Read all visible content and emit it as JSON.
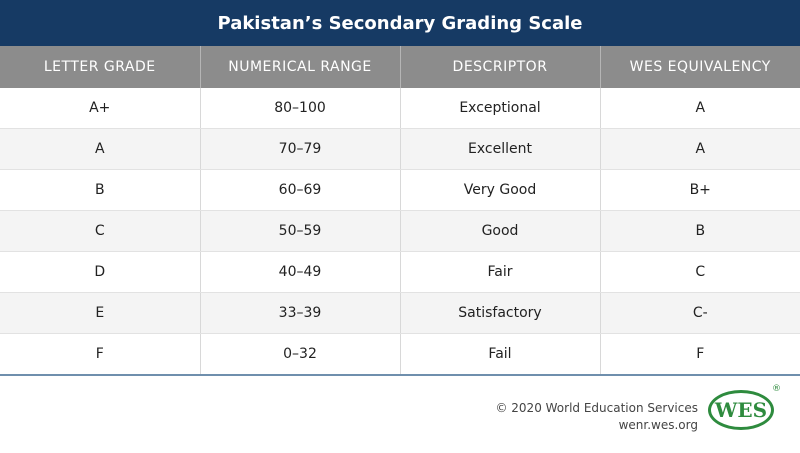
{
  "header": {
    "title": "Pakistan’s Secondary Grading Scale"
  },
  "table": {
    "columns": [
      "LETTER GRADE",
      "NUMERICAL RANGE",
      "DESCRIPTOR",
      "WES EQUIVALENCY"
    ],
    "rows": [
      [
        "A+",
        "80–100",
        "Exceptional",
        "A"
      ],
      [
        "A",
        "70–79",
        "Excellent",
        "A"
      ],
      [
        "B",
        "60–69",
        "Very Good",
        "B+"
      ],
      [
        "C",
        "50–59",
        "Good",
        "B"
      ],
      [
        "D",
        "40–49",
        "Fair",
        "C"
      ],
      [
        "E",
        "33–39",
        "Satisfactory",
        "C-"
      ],
      [
        "F",
        "0–32",
        "Fail",
        "F"
      ]
    ]
  },
  "footer": {
    "copyright": "© 2020 World Education Services",
    "url": "wenr.wes.org"
  },
  "logo": {
    "text": "WES",
    "mark": "®"
  }
}
